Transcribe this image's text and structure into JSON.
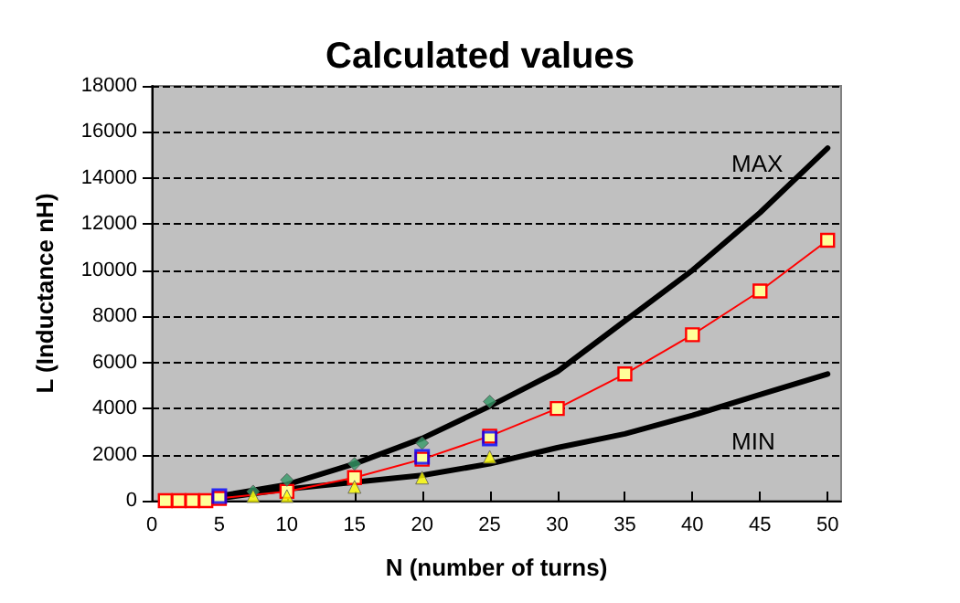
{
  "chart_data": {
    "type": "line",
    "title": "Calculated values",
    "xlabel": "N (number of turns)",
    "ylabel": "L (Inductance nH)",
    "xlim": [
      0,
      51
    ],
    "xticks": [
      0,
      5,
      10,
      15,
      20,
      25,
      30,
      35,
      40,
      45,
      50
    ],
    "ylim": [
      0,
      18000
    ],
    "yticks": [
      0,
      2000,
      4000,
      6000,
      8000,
      10000,
      12000,
      14000,
      16000,
      18000
    ],
    "grid": "y",
    "series": [
      {
        "color": "#000000",
        "x": [
          1,
          5,
          10,
          15,
          20,
          25,
          30,
          35,
          40,
          45,
          50
        ],
        "values": [
          0,
          200,
          700,
          1600,
          2700,
          4100,
          5600,
          7800,
          10000,
          12500,
          15300
        ],
        "marker": "none",
        "line_style": "solid"
      },
      {
        "color": "#000000",
        "x": [
          1,
          5,
          10,
          15,
          20,
          25,
          30,
          35,
          40,
          45,
          50
        ],
        "values": [
          0,
          100,
          500,
          800,
          1100,
          1600,
          2300,
          2900,
          3700,
          4600,
          5500
        ],
        "marker": "none",
        "line_style": "solid"
      },
      {
        "color": "#ff0000",
        "x": [
          1,
          2,
          3,
          4,
          5,
          10,
          15,
          20,
          25,
          30,
          35,
          40,
          45,
          50
        ],
        "values": [
          0,
          0,
          0,
          0,
          100,
          400,
          1000,
          1800,
          2800,
          4000,
          5500,
          7200,
          9100,
          11300
        ],
        "marker": "square",
        "line_style": "solid"
      },
      {
        "type": "scatter",
        "color": "#0000ff",
        "x": [
          5,
          20,
          25
        ],
        "values": [
          200,
          1900,
          2700
        ],
        "marker": "square"
      },
      {
        "type": "scatter",
        "color": "#339966",
        "x": [
          7.5,
          10,
          15,
          20,
          25
        ],
        "values": [
          400,
          900,
          1600,
          2500,
          4300
        ],
        "marker": "diamond"
      },
      {
        "type": "scatter",
        "color": "#ffff00",
        "x": [
          7.5,
          10,
          15,
          20,
          25
        ],
        "values": [
          200,
          200,
          600,
          1000,
          1900
        ],
        "marker": "triangle"
      }
    ],
    "annotations": [
      "MAX",
      "MIN"
    ]
  }
}
